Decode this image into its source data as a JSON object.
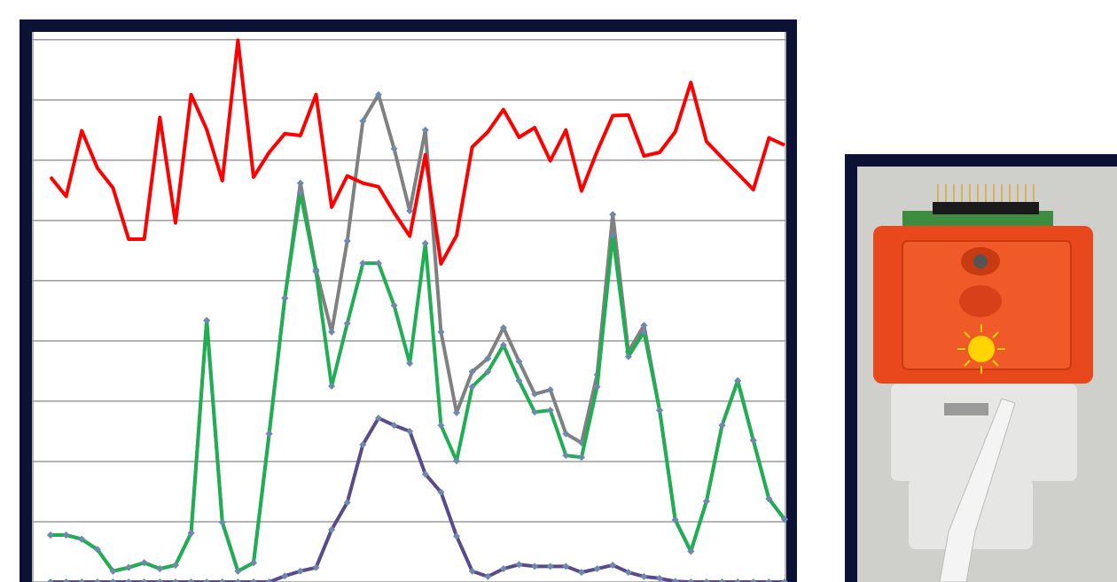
{
  "chart_data": {
    "type": "line",
    "x": [
      0,
      1,
      2,
      3,
      4,
      5,
      6,
      7,
      8,
      9,
      10,
      11,
      12,
      13,
      14,
      15,
      16,
      17,
      18,
      19,
      20,
      21,
      22,
      23,
      24,
      25,
      26,
      27,
      28,
      29,
      30,
      31,
      32,
      33,
      34,
      35,
      36,
      37,
      38,
      39,
      40,
      41,
      42,
      43,
      44,
      45,
      46,
      47
    ],
    "xlim": [
      0,
      47
    ],
    "ylim": [
      0,
      9.1
    ],
    "yticks": [
      0,
      1,
      2,
      3,
      4,
      5,
      6,
      7,
      8,
      9
    ],
    "grid": true,
    "series": [
      {
        "color": "#808080",
        "markers": true,
        "values": [
          0.78,
          0.78,
          0.71,
          0.54,
          0.18,
          0.24,
          0.32,
          0.22,
          0.28,
          0.81,
          4.34,
          0.99,
          0.18,
          0.32,
          2.46,
          4.71,
          6.62,
          5.18,
          4.15,
          5.66,
          7.65,
          8.09,
          7.19,
          6.16,
          7.5,
          4.15,
          2.81,
          3.49,
          3.71,
          4.22,
          3.66,
          3.12,
          3.19,
          2.46,
          2.31,
          3.44,
          6.1,
          3.82,
          4.26,
          2.85,
          1.03,
          0.51,
          1.34,
          2.6,
          3.34,
          2.35,
          1.38,
          1.04
        ]
      },
      {
        "color": "#1fae52",
        "markers": true,
        "values": [
          0.78,
          0.78,
          0.71,
          0.54,
          0.18,
          0.24,
          0.32,
          0.22,
          0.28,
          0.81,
          4.34,
          0.99,
          0.18,
          0.32,
          2.46,
          4.71,
          6.46,
          5.15,
          3.25,
          4.29,
          5.29,
          5.29,
          4.59,
          3.63,
          5.62,
          2.6,
          2.01,
          3.24,
          3.49,
          3.93,
          3.34,
          2.82,
          2.85,
          2.1,
          2.07,
          3.24,
          5.76,
          3.74,
          4.15,
          2.85,
          1.03,
          0.51,
          1.34,
          2.6,
          3.34,
          2.35,
          1.38,
          1.04
        ]
      },
      {
        "color": "#5a4a8c",
        "markers": true,
        "values": [
          0,
          0,
          0,
          0,
          0,
          0,
          0,
          0,
          0,
          0,
          0,
          0,
          0,
          0,
          0,
          0.1,
          0.18,
          0.24,
          0.87,
          1.32,
          2.28,
          2.72,
          2.6,
          2.5,
          1.79,
          1.49,
          0.76,
          0.18,
          0.09,
          0.22,
          0.29,
          0.26,
          0.26,
          0.26,
          0.16,
          0.22,
          0.28,
          0.16,
          0.09,
          0.06,
          0.01,
          0,
          0,
          0,
          0,
          0,
          0,
          0
        ]
      },
      {
        "color": "#ff0000",
        "markers": false,
        "values": [
          6.72,
          6.4,
          7.49,
          6.87,
          6.54,
          5.69,
          5.69,
          7.71,
          5.96,
          8.09,
          7.51,
          6.66,
          8.99,
          6.72,
          7.13,
          7.44,
          7.41,
          8.09,
          6.22,
          6.74,
          6.62,
          6.56,
          6.13,
          5.74,
          7.09,
          5.28,
          5.75,
          7.22,
          7.47,
          7.84,
          7.38,
          7.54,
          6.99,
          7.5,
          6.49,
          7.15,
          7.74,
          7.75,
          7.07,
          7.13,
          7.47,
          8.29,
          7.31,
          7.04,
          6.78,
          6.51,
          7.37,
          7.25
        ]
      }
    ]
  }
}
